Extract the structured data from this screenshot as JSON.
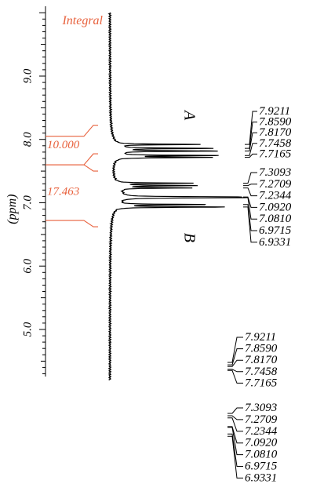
{
  "chart_data": {
    "type": "line",
    "title": "",
    "axis_label": "(ppm)",
    "axis_ticks": [
      "9.0",
      "8.0",
      "7.0",
      "6.0",
      "5.0"
    ],
    "axis_range": [
      4.2,
      10.0
    ],
    "integral_label": "Integral",
    "integrals": [
      {
        "value": "10.000",
        "from": 8.05,
        "to": 7.6
      },
      {
        "value": "17.463",
        "from": 7.6,
        "to": 6.72
      }
    ],
    "region_labels": [
      {
        "label": "A",
        "ppm": 8.38
      },
      {
        "label": "B",
        "ppm": 6.45
      }
    ],
    "peak_groups": [
      {
        "labels": [
          "7.9211",
          "7.8590",
          "7.8170",
          "7.7458",
          "7.7165"
        ]
      },
      {
        "labels": [
          "7.3093",
          "7.2709",
          "7.2344",
          "7.0920",
          "7.0810",
          "6.9715",
          "6.9331"
        ]
      }
    ],
    "lower_peak_groups": [
      {
        "labels": [
          "7.9211",
          "7.8590",
          "7.8170",
          "7.7458",
          "7.7165"
        ]
      },
      {
        "labels": [
          "7.3093",
          "7.2709",
          "7.2344",
          "7.0920",
          "7.0810",
          "6.9715",
          "6.9331"
        ]
      }
    ],
    "colors": {
      "integral": "#e8623e",
      "spectrum": "#000000"
    }
  }
}
